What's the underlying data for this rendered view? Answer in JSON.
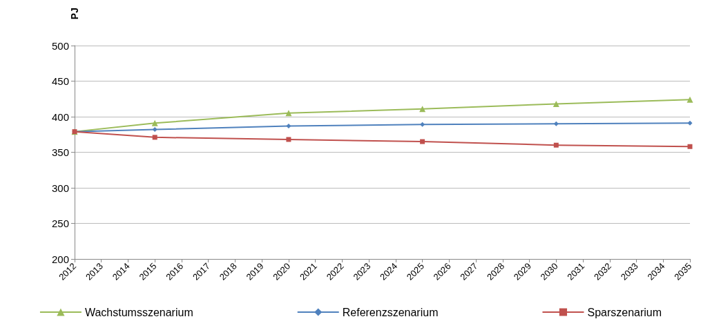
{
  "chart_data": {
    "type": "line",
    "ylabel": "PJ",
    "categories": [
      "2012",
      "2013",
      "2014",
      "2015",
      "2016",
      "2017",
      "2018",
      "2019",
      "2020",
      "2021",
      "2022",
      "2023",
      "2024",
      "2025",
      "2026",
      "2027",
      "2028",
      "2029",
      "2030",
      "2031",
      "2032",
      "2033",
      "2034",
      "2035"
    ],
    "series": [
      {
        "name": "Wachstumsszenarium",
        "color": "#9bbb59",
        "marker": "triangle",
        "values": [
          379,
          null,
          null,
          391,
          null,
          null,
          null,
          null,
          405,
          null,
          null,
          null,
          null,
          411,
          null,
          null,
          null,
          null,
          418,
          null,
          null,
          null,
          null,
          424
        ]
      },
      {
        "name": "Referenzszenarium",
        "color": "#4f81bd",
        "marker": "diamond",
        "values": [
          379,
          null,
          null,
          382,
          null,
          null,
          null,
          null,
          387,
          null,
          null,
          null,
          null,
          389,
          null,
          null,
          null,
          null,
          390,
          null,
          null,
          null,
          null,
          391
        ]
      },
      {
        "name": "Sparszenarium",
        "color": "#c0504d",
        "marker": "square",
        "values": [
          379,
          null,
          null,
          371,
          null,
          null,
          null,
          null,
          368,
          null,
          null,
          null,
          null,
          365,
          null,
          null,
          null,
          null,
          360,
          null,
          null,
          null,
          null,
          358
        ]
      }
    ],
    "ylim": [
      200,
      500
    ],
    "yticks": [
      200,
      250,
      300,
      350,
      400,
      450,
      500
    ],
    "grid": "y",
    "legend": "bottom",
    "line_style": "solid"
  }
}
